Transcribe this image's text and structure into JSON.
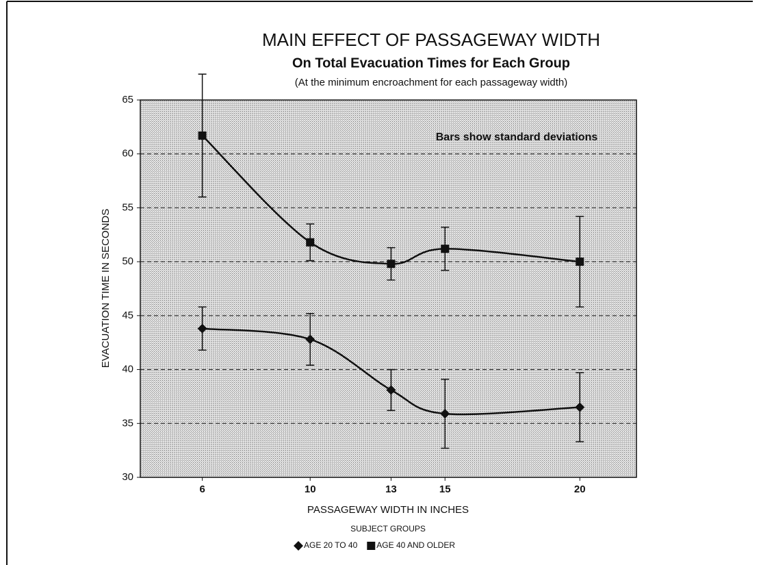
{
  "chart_data": {
    "type": "line",
    "title": "MAIN EFFECT OF PASSAGEWAY WIDTH",
    "subtitle": "On Total Evacuation Times for Each Group",
    "note": "(At the minimum encroachment for each passageway width)",
    "annotation": "Bars show standard deviations",
    "xlabel": "PASSAGEWAY WIDTH IN INCHES",
    "ylabel": "EVACUATION TIME IN SECONDS",
    "legend_title": "SUBJECT GROUPS",
    "x": [
      6,
      10,
      13,
      15,
      20
    ],
    "xlim": [
      3.7,
      22.1
    ],
    "xticks": [
      6,
      10,
      13,
      15,
      20
    ],
    "ylim": [
      30,
      65
    ],
    "yticks": [
      30,
      35,
      40,
      45,
      50,
      55,
      60,
      65
    ],
    "grid": true,
    "smooth": true,
    "series": [
      {
        "name": "AGE 20 TO 40",
        "color": "#111111",
        "marker": "diamond",
        "values": [
          43.8,
          42.8,
          38.1,
          35.9,
          36.5
        ],
        "errors": [
          2.0,
          2.4,
          1.9,
          3.2,
          3.2
        ]
      },
      {
        "name": "AGE 40 AND OLDER",
        "color": "#111111",
        "marker": "square",
        "values": [
          61.7,
          51.8,
          49.8,
          51.2,
          50.0
        ],
        "errors": [
          5.7,
          1.7,
          1.5,
          2.0,
          4.2
        ]
      }
    ]
  }
}
